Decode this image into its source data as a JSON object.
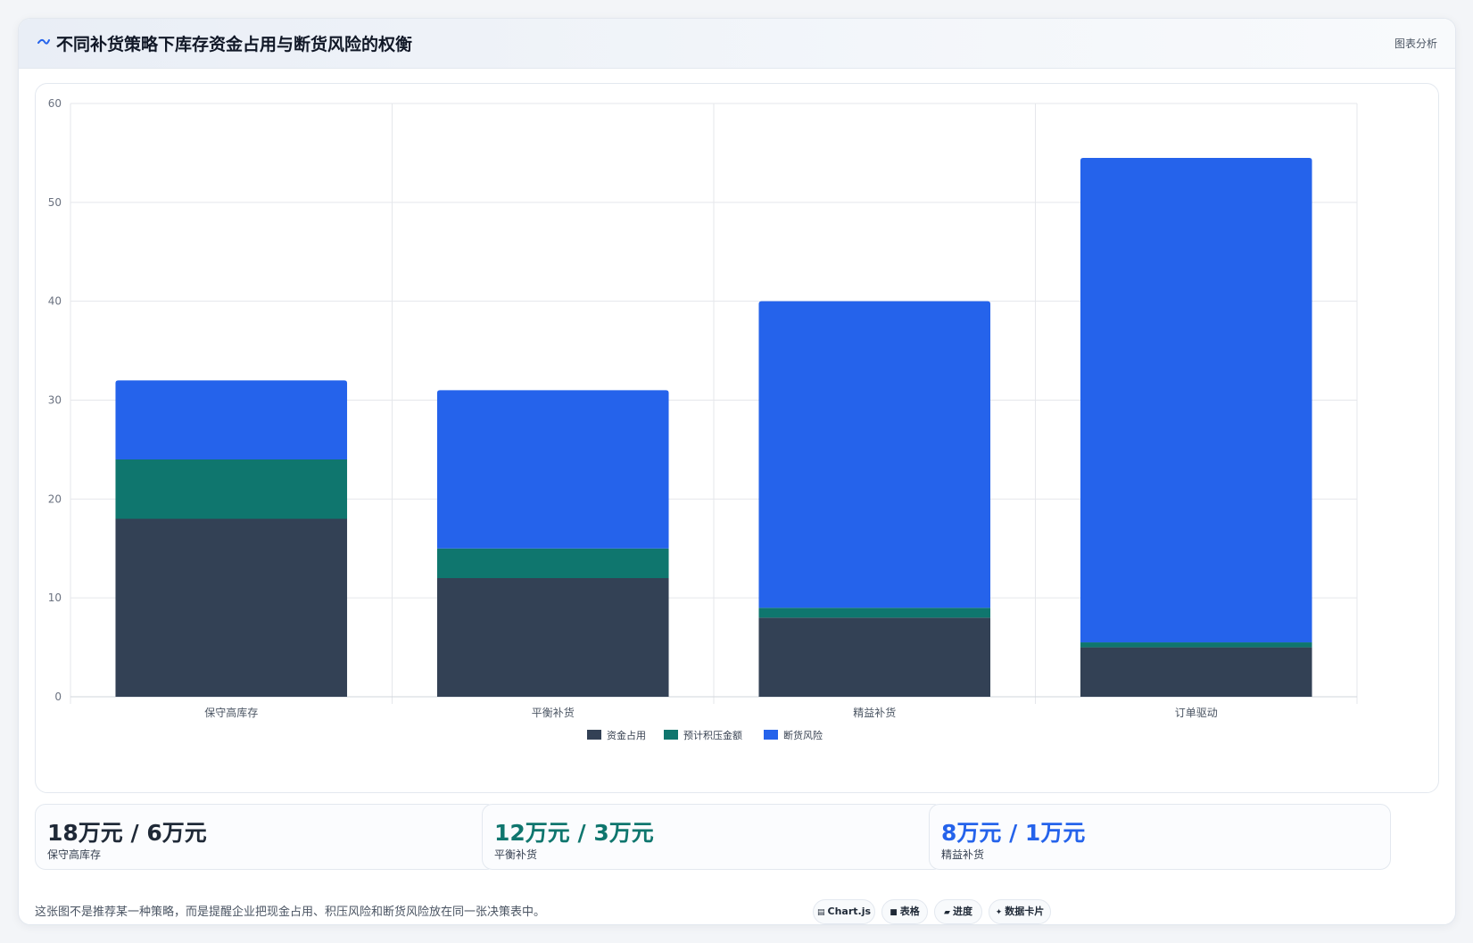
{
  "header": {
    "icon": "wave-icon",
    "title": "不同补货策略下库存资金占用与断货风险的权衡",
    "tag": "图表分析"
  },
  "chart_data": {
    "type": "bar",
    "stacked": true,
    "title": "",
    "xlabel": "",
    "ylabel": "",
    "categories": [
      "保守高库存",
      "平衡补货",
      "精益补货",
      "订单驱动"
    ],
    "series": [
      {
        "name": "资金占用",
        "color": "#334155",
        "values": [
          18,
          12,
          8,
          5
        ]
      },
      {
        "name": "预计积压金额",
        "color": "#0f766e",
        "values": [
          6,
          3,
          1,
          0.5
        ]
      },
      {
        "name": "断货风险",
        "color": "#2563eb",
        "values": [
          8,
          16,
          31,
          49
        ]
      }
    ],
    "ylim": [
      0,
      60
    ],
    "yticks": [
      0,
      10,
      20,
      30,
      40,
      50,
      60
    ],
    "grid": true,
    "legend_position": "bottom"
  },
  "stats": [
    {
      "value": "18万元 / 6万元",
      "label": "保守高库存",
      "color": "#1f2937"
    },
    {
      "value": "12万元 / 3万元",
      "label": "平衡补货",
      "color": "#0f766e"
    },
    {
      "value": "8万元 / 1万元",
      "label": "精益补货",
      "color": "#2563eb"
    }
  ],
  "footnote": "这张图不是推荐某一种策略，而是提醒企业把现金占用、积压风险和断货风险放在同一张决策表中。",
  "pills": [
    {
      "glyph": "▤",
      "icon": "chart-icon",
      "label": "Chart.js"
    },
    {
      "glyph": "■",
      "icon": "table-icon",
      "label": "表格"
    },
    {
      "glyph": "▰",
      "icon": "progress-icon",
      "label": "进度"
    },
    {
      "glyph": "✦",
      "icon": "sparkle-icon",
      "label": "数据卡片"
    }
  ]
}
